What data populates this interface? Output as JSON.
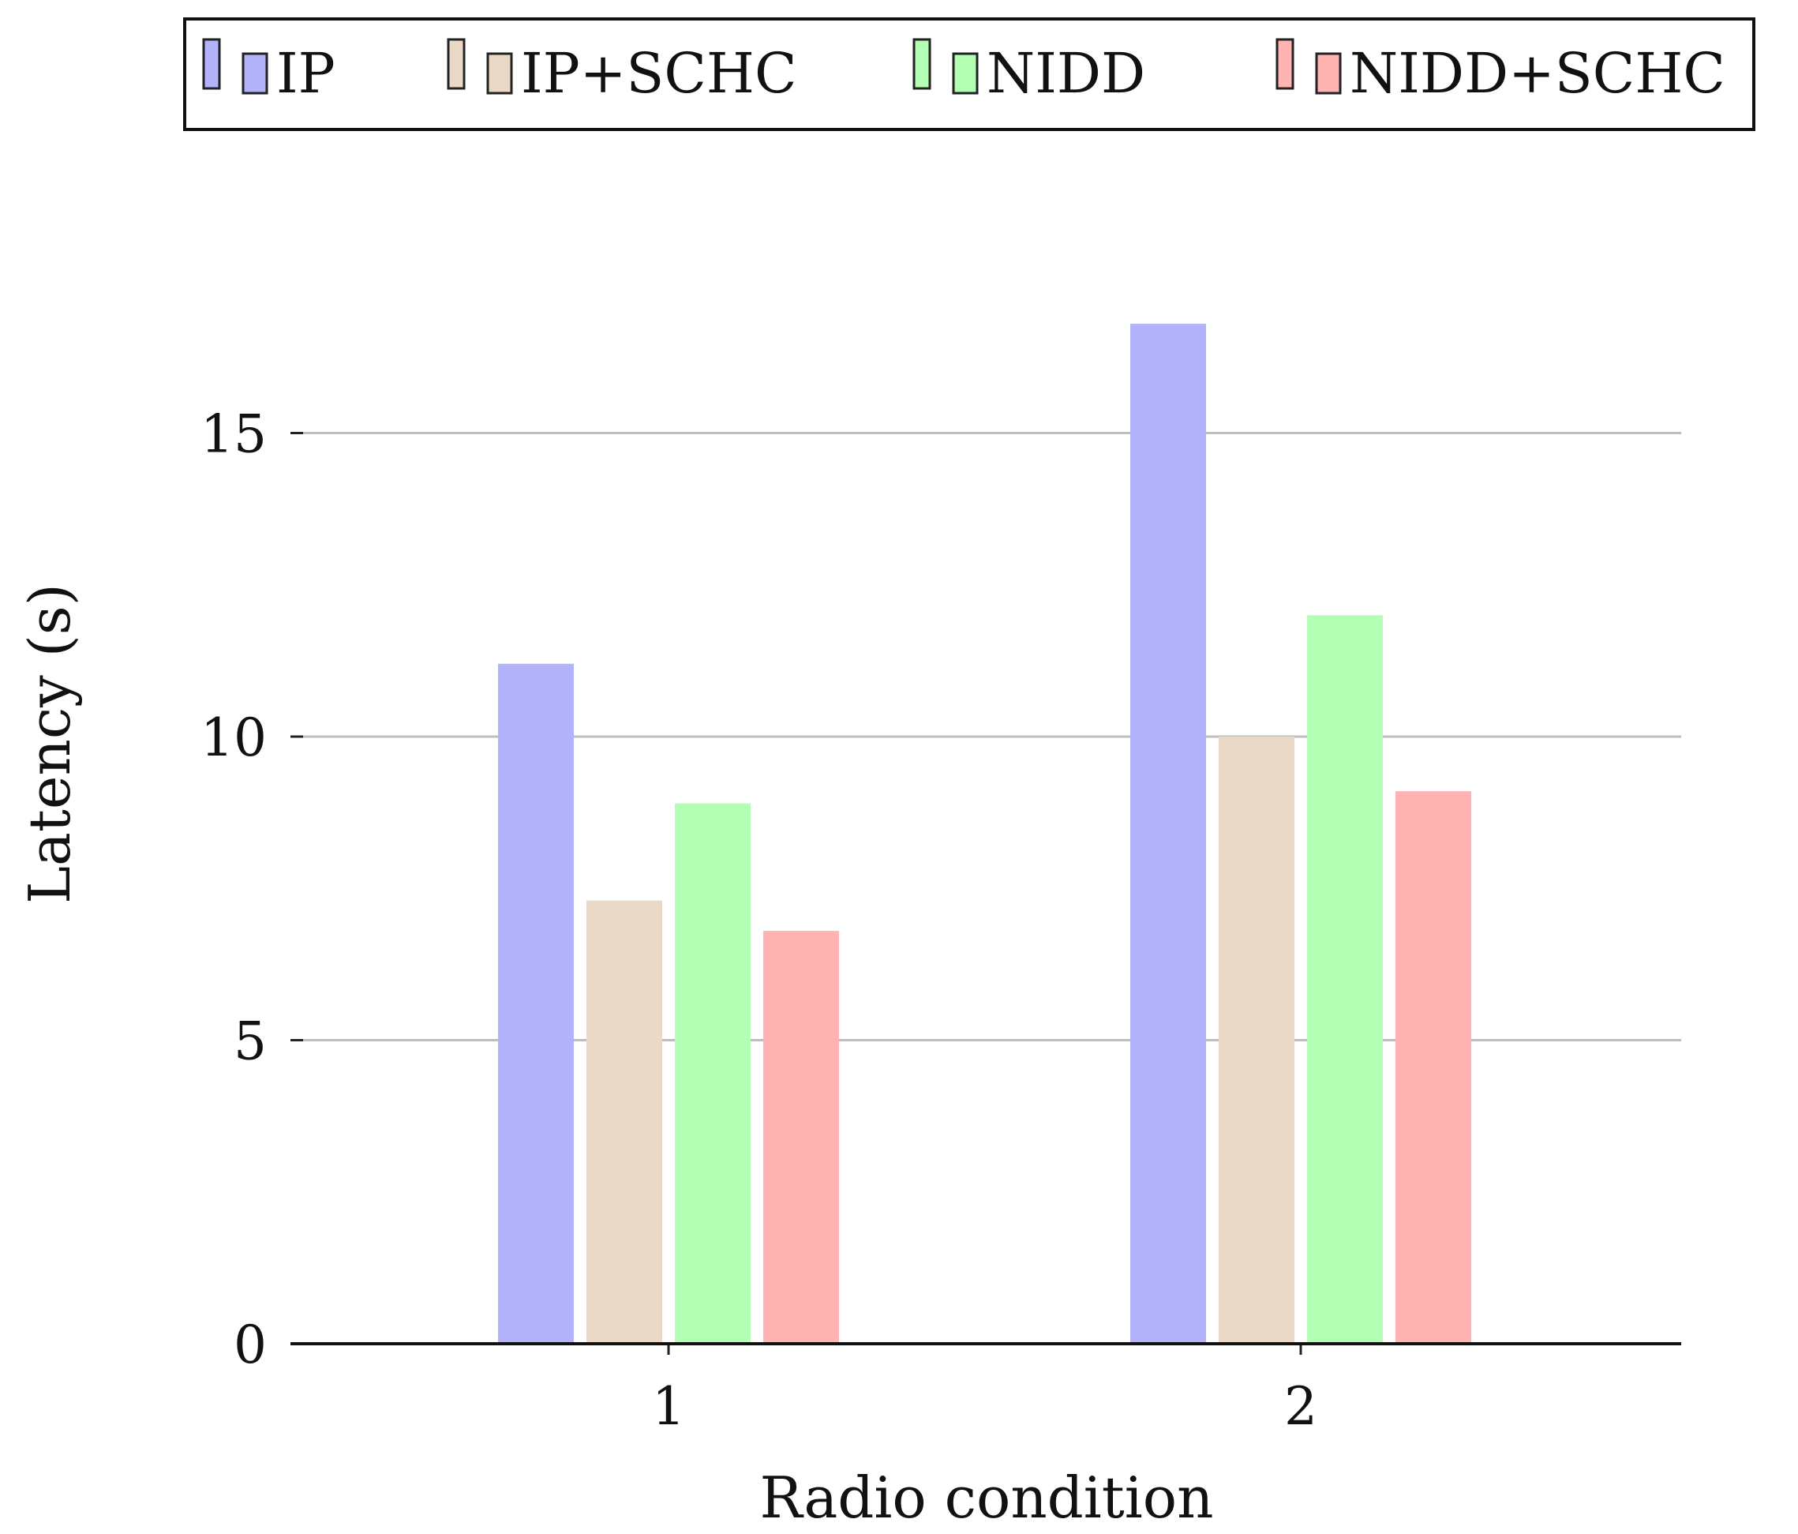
{
  "chart_data": {
    "type": "bar",
    "title": "",
    "xlabel": "Radio condition",
    "ylabel": "Latency (s)",
    "categories": [
      "1",
      "2"
    ],
    "series": [
      {
        "name": "IP",
        "color": "#b3b3fb",
        "values": [
          11.2,
          16.8
        ]
      },
      {
        "name": "IP+SCHC",
        "color": "#ead9c6",
        "values": [
          7.3,
          10.0
        ]
      },
      {
        "name": "NIDD",
        "color": "#b3ffb3",
        "values": [
          8.9,
          12.0
        ]
      },
      {
        "name": "NIDD+SCHC",
        "color": "#ffb3b3",
        "values": [
          6.8,
          9.1
        ]
      }
    ],
    "yticks": [
      "0",
      "5",
      "10",
      "15"
    ],
    "ylim": [
      0,
      17.5
    ],
    "grid": "horizontal",
    "legend_position": "top"
  }
}
